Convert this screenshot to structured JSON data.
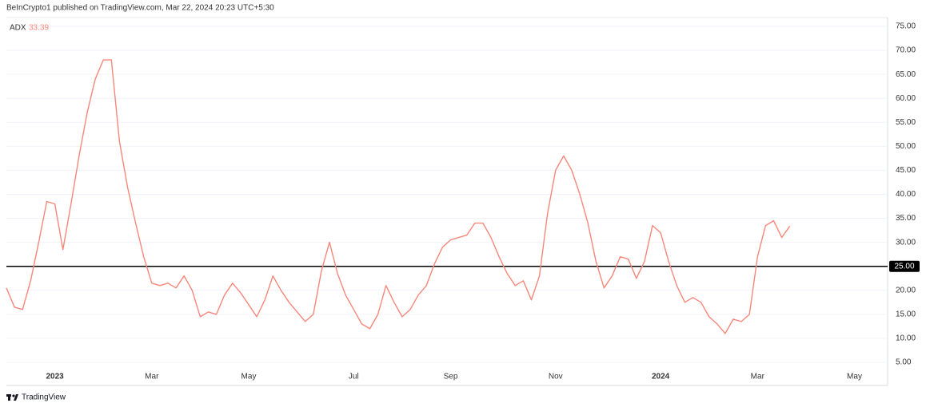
{
  "header": "BeInCrypto1 published on TradingView.com, Mar 22, 2024 20:23 UTC+5:30",
  "footer": "TradingView",
  "chart_data": {
    "type": "line",
    "categories": [
      null,
      null,
      null,
      null,
      null,
      null,
      "2023",
      null,
      null,
      null,
      null,
      null,
      null,
      null,
      null,
      null,
      null,
      null,
      "Mar",
      null,
      null,
      null,
      null,
      null,
      null,
      null,
      null,
      null,
      null,
      null,
      "May",
      null,
      null,
      null,
      null,
      null,
      null,
      null,
      null,
      null,
      null,
      null,
      null,
      "Jul",
      null,
      null,
      null,
      null,
      null,
      null,
      null,
      null,
      null,
      null,
      null,
      "Sep",
      null,
      null,
      null,
      null,
      null,
      null,
      null,
      null,
      null,
      null,
      null,
      null,
      "Nov",
      null,
      null,
      null,
      null,
      null,
      null,
      null,
      null,
      null,
      null,
      null,
      null,
      "2024",
      null,
      null,
      null,
      null,
      null,
      null,
      null,
      null,
      null,
      null,
      null,
      "Mar",
      null,
      null,
      null,
      null,
      null,
      null,
      null,
      null,
      null,
      null,
      null,
      "May",
      null,
      null,
      null
    ],
    "series": [
      {
        "name": "ADX",
        "color": "#f7877a",
        "values": [
          20.5,
          16.5,
          16,
          22,
          30,
          38.5,
          38,
          28.5,
          38,
          48,
          57,
          64,
          68,
          68,
          51,
          41.5,
          34,
          27,
          21.5,
          21,
          21.5,
          20.5,
          23,
          20,
          14.5,
          15.5,
          15,
          19,
          21.5,
          19.5,
          17,
          14.5,
          18,
          23,
          20,
          17.5,
          15.5,
          13.5,
          15,
          24,
          30,
          23.5,
          19,
          16,
          13,
          12,
          15,
          21,
          17.5,
          14.5,
          16,
          19,
          21,
          25.5,
          29,
          30.5,
          31,
          31.5,
          34,
          34,
          31,
          27,
          23.5,
          21,
          22,
          18,
          23,
          36,
          45,
          48,
          45,
          40,
          34,
          26,
          20.5,
          23,
          27,
          26.5,
          22.5,
          26,
          33.5,
          32,
          26,
          21,
          17.5,
          18.5,
          17.5,
          14.5,
          13,
          11,
          14,
          13.5,
          15,
          27,
          33.5,
          34.5,
          31,
          33.39,
          null,
          null,
          null,
          null,
          null,
          null,
          null,
          null,
          null,
          null,
          null
        ]
      }
    ],
    "ylim": [
      3.67,
      76.83
    ],
    "yticks": [
      {
        "value": 5,
        "label": "5.00"
      },
      {
        "value": 10,
        "label": "10.00"
      },
      {
        "value": 15,
        "label": "15.00"
      },
      {
        "value": 20,
        "label": "20.00"
      },
      {
        "value": 30,
        "label": "30.00"
      },
      {
        "value": 35,
        "label": "35.00"
      },
      {
        "value": 40,
        "label": "40.00"
      },
      {
        "value": 45,
        "label": "45.00"
      },
      {
        "value": 50,
        "label": "50.00"
      },
      {
        "value": 55,
        "label": "55.00"
      },
      {
        "value": 60,
        "label": "60.00"
      },
      {
        "value": 65,
        "label": "65.00"
      },
      {
        "value": 70,
        "label": "70.00"
      },
      {
        "value": 75,
        "label": "75.00"
      }
    ],
    "hline": {
      "value": 25,
      "label": "25.00",
      "color": "#000000"
    },
    "grid": true
  }
}
